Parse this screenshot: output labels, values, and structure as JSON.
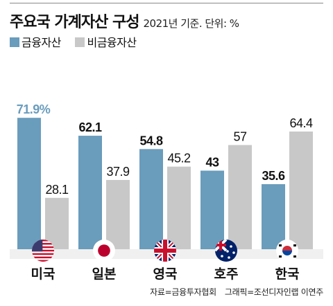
{
  "title": "주요국 가계자산 구성",
  "subtitle": "2021년 기준. 단위: %",
  "legend": {
    "financial": "금융자산",
    "nonfinancial": "비금융자산"
  },
  "colors": {
    "financial": "#6a9cbc",
    "nonfinancial": "#c8c8c8",
    "financial_label": "#6a9cbc",
    "text": "#111111"
  },
  "chart_data": {
    "type": "bar",
    "categories": [
      "미국",
      "일본",
      "영국",
      "호주",
      "한국"
    ],
    "flags": [
      "us-flag-icon",
      "japan-flag-icon",
      "uk-flag-icon",
      "australia-flag-icon",
      "korea-flag-icon"
    ],
    "series": [
      {
        "name": "금융자산",
        "values": [
          71.9,
          62.1,
          54.8,
          43,
          35.6
        ],
        "labels": [
          "71.9%",
          "62.1",
          "54.8",
          "43",
          "35.6"
        ]
      },
      {
        "name": "비금융자산",
        "values": [
          28.1,
          37.9,
          45.2,
          57,
          64.4
        ],
        "labels": [
          "28.1",
          "37.9",
          "45.2",
          "57",
          "64.4"
        ]
      }
    ],
    "ylim": [
      0,
      75
    ]
  },
  "source": "자료=금융투자협회",
  "credit": "그래픽=조선디자인랩 이연주"
}
